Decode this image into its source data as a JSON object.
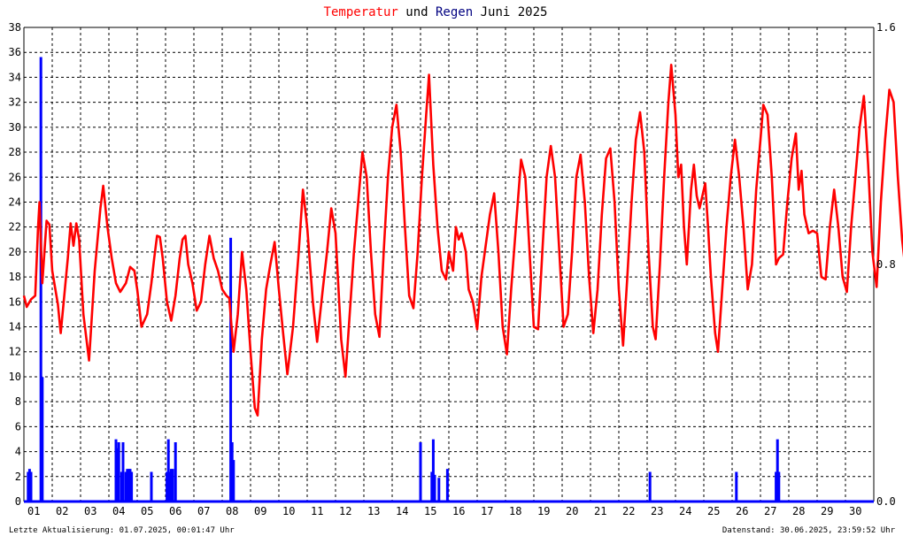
{
  "chart_data": {
    "type": "line",
    "title_parts": [
      {
        "text": "Temperatur",
        "color": "#ff0000"
      },
      {
        "text": " und ",
        "color": "#000000"
      },
      {
        "text": "Regen",
        "color": "#000080"
      },
      {
        "text": " Juni 2025",
        "color": "#000000"
      }
    ],
    "x_labels": [
      "01",
      "02",
      "03",
      "04",
      "05",
      "06",
      "07",
      "08",
      "09",
      "10",
      "11",
      "12",
      "13",
      "14",
      "15",
      "16",
      "17",
      "18",
      "19",
      "20",
      "21",
      "22",
      "23",
      "24",
      "25",
      "26",
      "27",
      "28",
      "29",
      "30"
    ],
    "x_range_days": [
      1,
      31
    ],
    "y_left": {
      "min": 0,
      "max": 38,
      "step": 2
    },
    "y_right": {
      "min": 0,
      "max": 1.6,
      "tick_labels": [
        "0.0",
        "0.8",
        "1.6"
      ]
    },
    "grid": true,
    "series": [
      {
        "name": "Temperatur",
        "color": "#ff0000",
        "points": [
          [
            1.0,
            16.5
          ],
          [
            1.1,
            15.6
          ],
          [
            1.25,
            16.2
          ],
          [
            1.4,
            16.5
          ],
          [
            1.5,
            22.0
          ],
          [
            1.55,
            24.0
          ],
          [
            1.65,
            17.5
          ],
          [
            1.8,
            22.5
          ],
          [
            1.9,
            22.2
          ],
          [
            2.0,
            18.5
          ],
          [
            2.2,
            15.8
          ],
          [
            2.3,
            13.5
          ],
          [
            2.55,
            19.5
          ],
          [
            2.65,
            22.3
          ],
          [
            2.75,
            20.5
          ],
          [
            2.85,
            22.3
          ],
          [
            2.95,
            21.0
          ],
          [
            3.1,
            15.0
          ],
          [
            3.3,
            11.3
          ],
          [
            3.5,
            18.5
          ],
          [
            3.7,
            23.5
          ],
          [
            3.8,
            25.3
          ],
          [
            3.95,
            22.0
          ],
          [
            4.1,
            19.5
          ],
          [
            4.25,
            17.5
          ],
          [
            4.4,
            16.8
          ],
          [
            4.6,
            17.5
          ],
          [
            4.75,
            18.8
          ],
          [
            4.9,
            18.5
          ],
          [
            5.0,
            17.0
          ],
          [
            5.15,
            14.0
          ],
          [
            5.35,
            15.0
          ],
          [
            5.5,
            17.5
          ],
          [
            5.6,
            19.5
          ],
          [
            5.7,
            21.3
          ],
          [
            5.8,
            21.2
          ],
          [
            5.9,
            19.5
          ],
          [
            6.05,
            16.0
          ],
          [
            6.2,
            14.5
          ],
          [
            6.35,
            16.5
          ],
          [
            6.5,
            19.5
          ],
          [
            6.6,
            21.0
          ],
          [
            6.7,
            21.3
          ],
          [
            6.8,
            19.0
          ],
          [
            6.95,
            17.5
          ],
          [
            7.1,
            15.3
          ],
          [
            7.25,
            16.0
          ],
          [
            7.4,
            19.0
          ],
          [
            7.55,
            21.3
          ],
          [
            7.7,
            19.5
          ],
          [
            7.85,
            18.5
          ],
          [
            8.0,
            17.0
          ],
          [
            8.15,
            16.5
          ],
          [
            8.25,
            16.3
          ],
          [
            8.4,
            12.0
          ],
          [
            8.55,
            15.0
          ],
          [
            8.7,
            20.0
          ],
          [
            8.85,
            17.0
          ],
          [
            9.0,
            12.0
          ],
          [
            9.15,
            7.5
          ],
          [
            9.25,
            6.9
          ],
          [
            9.4,
            13.0
          ],
          [
            9.55,
            17.0
          ],
          [
            9.7,
            19.0
          ],
          [
            9.85,
            20.8
          ],
          [
            10.0,
            17.0
          ],
          [
            10.15,
            13.5
          ],
          [
            10.3,
            10.2
          ],
          [
            10.5,
            14.0
          ],
          [
            10.7,
            20.0
          ],
          [
            10.85,
            25.0
          ],
          [
            11.0,
            22.0
          ],
          [
            11.2,
            16.0
          ],
          [
            11.35,
            12.8
          ],
          [
            11.55,
            17.0
          ],
          [
            11.7,
            20.0
          ],
          [
            11.85,
            23.5
          ],
          [
            12.0,
            21.5
          ],
          [
            12.2,
            13.0
          ],
          [
            12.35,
            10.0
          ],
          [
            12.5,
            15.0
          ],
          [
            12.65,
            20.0
          ],
          [
            12.8,
            24.0
          ],
          [
            12.95,
            28.0
          ],
          [
            13.1,
            26.0
          ],
          [
            13.25,
            20.0
          ],
          [
            13.4,
            15.0
          ],
          [
            13.55,
            13.2
          ],
          [
            13.7,
            20.0
          ],
          [
            13.85,
            26.0
          ],
          [
            14.0,
            30.0
          ],
          [
            14.15,
            31.8
          ],
          [
            14.3,
            28.0
          ],
          [
            14.45,
            22.0
          ],
          [
            14.6,
            16.5
          ],
          [
            14.75,
            15.5
          ],
          [
            14.9,
            20.0
          ],
          [
            15.05,
            26.0
          ],
          [
            15.2,
            31.0
          ],
          [
            15.3,
            34.2
          ],
          [
            15.45,
            27.0
          ],
          [
            15.6,
            22.0
          ],
          [
            15.75,
            18.5
          ],
          [
            15.9,
            17.8
          ],
          [
            16.0,
            20.0
          ],
          [
            16.15,
            18.5
          ],
          [
            16.25,
            22.0
          ],
          [
            16.35,
            21.0
          ],
          [
            16.45,
            21.5
          ],
          [
            16.6,
            20.0
          ],
          [
            16.7,
            17.0
          ],
          [
            16.85,
            16.0
          ],
          [
            17.0,
            13.8
          ],
          [
            17.15,
            18.0
          ],
          [
            17.3,
            20.5
          ],
          [
            17.45,
            23.0
          ],
          [
            17.6,
            24.7
          ],
          [
            17.75,
            20.0
          ],
          [
            17.9,
            14.0
          ],
          [
            18.05,
            11.8
          ],
          [
            18.2,
            17.0
          ],
          [
            18.4,
            23.0
          ],
          [
            18.55,
            27.4
          ],
          [
            18.7,
            26.0
          ],
          [
            18.85,
            20.0
          ],
          [
            19.0,
            14.0
          ],
          [
            19.15,
            13.8
          ],
          [
            19.3,
            20.0
          ],
          [
            19.45,
            26.0
          ],
          [
            19.6,
            28.5
          ],
          [
            19.75,
            26.0
          ],
          [
            19.9,
            20.0
          ],
          [
            20.05,
            14.0
          ],
          [
            20.2,
            15.0
          ],
          [
            20.35,
            20.0
          ],
          [
            20.5,
            26.0
          ],
          [
            20.65,
            27.8
          ],
          [
            20.8,
            24.0
          ],
          [
            20.95,
            18.0
          ],
          [
            21.1,
            13.5
          ],
          [
            21.25,
            17.0
          ],
          [
            21.4,
            23.0
          ],
          [
            21.55,
            27.5
          ],
          [
            21.7,
            28.3
          ],
          [
            21.85,
            24.0
          ],
          [
            22.0,
            17.0
          ],
          [
            22.15,
            12.5
          ],
          [
            22.3,
            18.0
          ],
          [
            22.45,
            24.0
          ],
          [
            22.6,
            29.0
          ],
          [
            22.75,
            31.2
          ],
          [
            22.9,
            28.0
          ],
          [
            23.05,
            20.0
          ],
          [
            23.2,
            14.0
          ],
          [
            23.3,
            13.0
          ],
          [
            23.45,
            19.0
          ],
          [
            23.6,
            26.0
          ],
          [
            23.75,
            32.0
          ],
          [
            23.85,
            35.0
          ],
          [
            24.0,
            31.0
          ],
          [
            24.1,
            26.0
          ],
          [
            24.2,
            27.0
          ],
          [
            24.3,
            22.0
          ],
          [
            24.4,
            19.0
          ],
          [
            24.55,
            25.0
          ],
          [
            24.65,
            27.0
          ],
          [
            24.75,
            24.5
          ],
          [
            24.85,
            23.5
          ],
          [
            24.95,
            24.5
          ],
          [
            25.05,
            25.5
          ],
          [
            25.15,
            22.0
          ],
          [
            25.25,
            18.0
          ],
          [
            25.4,
            13.5
          ],
          [
            25.5,
            12.0
          ],
          [
            25.65,
            17.0
          ],
          [
            25.8,
            22.0
          ],
          [
            25.95,
            26.0
          ],
          [
            26.1,
            29.0
          ],
          [
            26.25,
            26.0
          ],
          [
            26.4,
            22.0
          ],
          [
            26.55,
            17.0
          ],
          [
            26.7,
            19.0
          ],
          [
            26.85,
            25.0
          ],
          [
            27.0,
            29.0
          ],
          [
            27.1,
            31.8
          ],
          [
            27.25,
            31.0
          ],
          [
            27.4,
            26.0
          ],
          [
            27.55,
            19.0
          ],
          [
            27.65,
            19.5
          ],
          [
            27.8,
            19.8
          ],
          [
            27.95,
            24.0
          ],
          [
            28.1,
            27.5
          ],
          [
            28.25,
            29.5
          ],
          [
            28.35,
            25.0
          ],
          [
            28.45,
            26.5
          ],
          [
            28.55,
            23.0
          ],
          [
            28.7,
            21.5
          ],
          [
            28.85,
            21.7
          ],
          [
            29.0,
            21.5
          ],
          [
            29.15,
            18.0
          ],
          [
            29.3,
            17.8
          ],
          [
            29.45,
            22.0
          ],
          [
            29.6,
            25.0
          ],
          [
            29.75,
            22.0
          ],
          [
            29.9,
            18.0
          ],
          [
            30.05,
            16.8
          ],
          [
            30.2,
            22.0
          ],
          [
            30.35,
            26.0
          ],
          [
            30.5,
            30.0
          ],
          [
            30.65,
            32.5
          ],
          [
            30.8,
            27.0
          ],
          [
            30.95,
            20.0
          ],
          [
            31.1,
            17.2
          ],
          [
            31.25,
            24.0
          ],
          [
            31.4,
            29.0
          ],
          [
            31.55,
            33.0
          ],
          [
            31.7,
            32.0
          ],
          [
            31.85,
            26.0
          ],
          [
            32.0,
            21.0
          ],
          [
            32.1,
            19.0
          ],
          [
            32.25,
            24.0
          ],
          [
            32.4,
            28.0
          ],
          [
            32.55,
            32.0
          ],
          [
            32.7,
            34.0
          ],
          [
            32.85,
            30.0
          ],
          [
            33.0,
            24.0
          ]
        ]
      },
      {
        "name": "Regen",
        "color": "#0000ff",
        "points": [
          [
            1.15,
            0.1
          ],
          [
            1.2,
            0.11
          ],
          [
            1.25,
            0.1
          ],
          [
            1.6,
            1.5
          ],
          [
            1.65,
            0.42
          ],
          [
            4.25,
            0.21
          ],
          [
            4.3,
            0.18
          ],
          [
            4.35,
            0.2
          ],
          [
            4.45,
            0.1
          ],
          [
            4.5,
            0.2
          ],
          [
            4.6,
            0.1
          ],
          [
            4.65,
            0.11
          ],
          [
            4.7,
            0.11
          ],
          [
            4.75,
            0.11
          ],
          [
            4.8,
            0.1
          ],
          [
            5.5,
            0.1
          ],
          [
            6.05,
            0.1
          ],
          [
            6.1,
            0.21
          ],
          [
            6.15,
            0.1
          ],
          [
            6.2,
            0.11
          ],
          [
            6.25,
            0.11
          ],
          [
            6.35,
            0.2
          ],
          [
            8.3,
            0.89
          ],
          [
            8.35,
            0.2
          ],
          [
            8.4,
            0.14
          ],
          [
            15.0,
            0.2
          ],
          [
            15.4,
            0.1
          ],
          [
            15.45,
            0.21
          ],
          [
            15.5,
            0.09
          ],
          [
            15.65,
            0.08
          ],
          [
            15.95,
            0.11
          ],
          [
            23.1,
            0.1
          ],
          [
            26.15,
            0.1
          ],
          [
            27.55,
            0.1
          ],
          [
            27.6,
            0.21
          ],
          [
            27.65,
            0.1
          ]
        ]
      }
    ],
    "footer_left": "Letzte Aktualisierung: 01.07.2025, 00:01:47 Uhr",
    "footer_right": "Datenstand: 30.06.2025, 23:59:52 Uhr"
  }
}
